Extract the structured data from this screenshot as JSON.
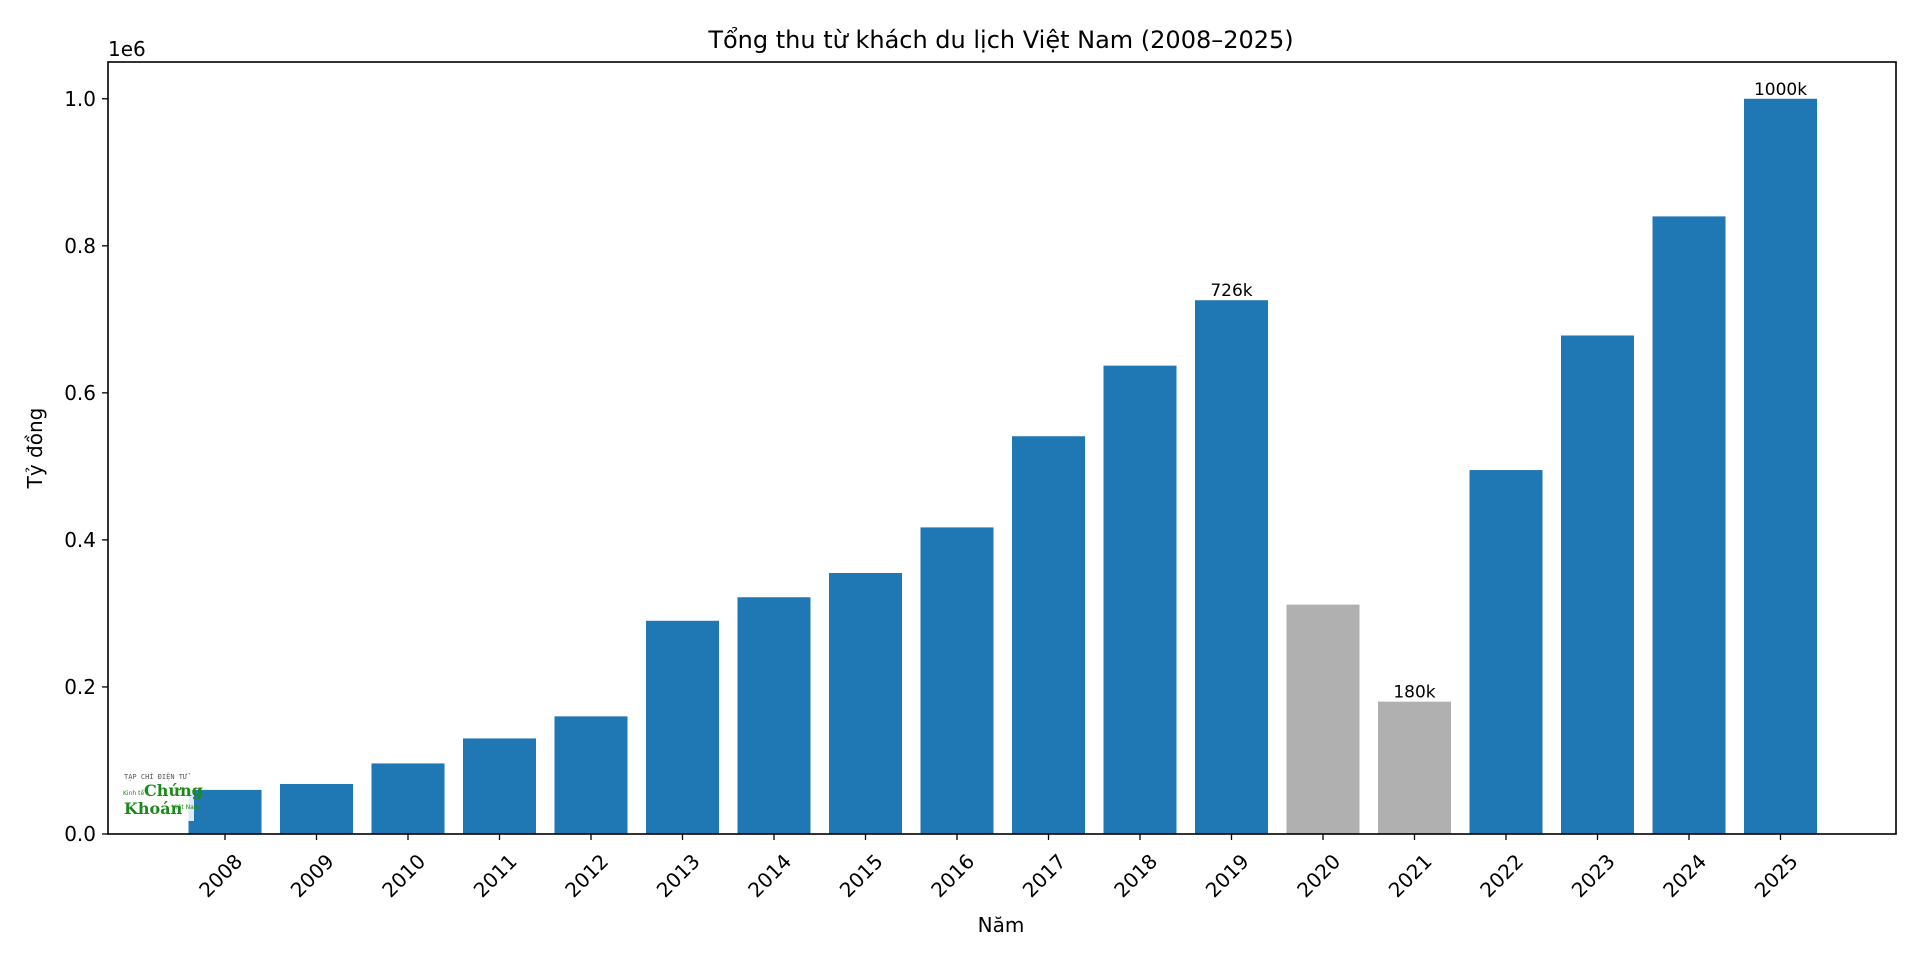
{
  "chart_data": {
    "type": "bar",
    "title": "Tổng thu từ khách du lịch Việt Nam (2008–2025)",
    "xlabel": "Năm",
    "ylabel": "Tỷ đồng",
    "y_offset_label": "1e6",
    "ylim": [
      0,
      1050000
    ],
    "yticks": [
      0,
      200000,
      400000,
      600000,
      800000,
      1000000
    ],
    "ytick_labels": [
      "0.0",
      "0.2",
      "0.4",
      "0.6",
      "0.8",
      "1.0"
    ],
    "categories": [
      "2008",
      "2009",
      "2010",
      "2011",
      "2012",
      "2013",
      "2014",
      "2015",
      "2016",
      "2017",
      "2018",
      "2019",
      "2020",
      "2021",
      "2022",
      "2023",
      "2024",
      "2025"
    ],
    "values": [
      60000,
      68000,
      96000,
      130000,
      160000,
      290000,
      322000,
      355000,
      417000,
      541000,
      637000,
      726000,
      312000,
      180000,
      495000,
      678000,
      840000,
      1000000
    ],
    "bar_colors": [
      "#1f77b4",
      "#1f77b4",
      "#1f77b4",
      "#1f77b4",
      "#1f77b4",
      "#1f77b4",
      "#1f77b4",
      "#1f77b4",
      "#1f77b4",
      "#1f77b4",
      "#1f77b4",
      "#1f77b4",
      "#b0b0b0",
      "#b0b0b0",
      "#1f77b4",
      "#1f77b4",
      "#1f77b4",
      "#1f77b4"
    ],
    "data_labels": [
      "",
      "",
      "",
      "",
      "",
      "",
      "",
      "",
      "",
      "",
      "",
      "726k",
      "",
      "180k",
      "",
      "",
      "",
      "1000k"
    ],
    "grid": false,
    "legend": false
  },
  "logo": {
    "line1": "TẠP CHÍ ĐIỆN TỬ",
    "word1": "Chứng",
    "word2": "Khoán",
    "side1": "Kinh tế",
    "side2": "Việt Nam"
  }
}
